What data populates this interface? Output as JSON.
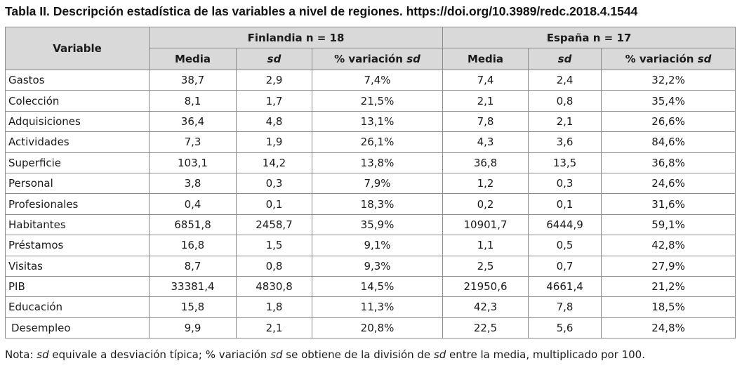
{
  "caption": "Tabla II. Descripción estadística de las variables a nivel de regiones. https://doi.org/10.3989/redc.2018.4.1544",
  "table": {
    "variable_header": "Variable",
    "groups": [
      {
        "label": "Finlandia n = 18"
      },
      {
        "label": "España n = 17"
      }
    ],
    "subheaders": {
      "media": "Media",
      "sd": "sd",
      "pct_prefix": "% variación",
      "pct_sd": "sd"
    },
    "rows": [
      {
        "variable": "Gastos",
        "fin": [
          "38,7",
          "2,9",
          "7,4%"
        ],
        "esp": [
          "7,4",
          "2,4",
          "32,2%"
        ]
      },
      {
        "variable": "Colección",
        "fin": [
          "8,1",
          "1,7",
          "21,5%"
        ],
        "esp": [
          "2,1",
          "0,8",
          "35,4%"
        ]
      },
      {
        "variable": "Adquisiciones",
        "fin": [
          "36,4",
          "4,8",
          "13,1%"
        ],
        "esp": [
          "7,8",
          "2,1",
          "26,6%"
        ]
      },
      {
        "variable": "Actividades",
        "fin": [
          "7,3",
          "1,9",
          "26,1%"
        ],
        "esp": [
          "4,3",
          "3,6",
          "84,6%"
        ]
      },
      {
        "variable": "Superficie",
        "fin": [
          "103,1",
          "14,2",
          "13,8%"
        ],
        "esp": [
          "36,8",
          "13,5",
          "36,8%"
        ]
      },
      {
        "variable": "Personal",
        "fin": [
          "3,8",
          "0,3",
          "7,9%"
        ],
        "esp": [
          "1,2",
          "0,3",
          "24,6%"
        ]
      },
      {
        "variable": "Profesionales",
        "fin": [
          "0,4",
          "0,1",
          "18,3%"
        ],
        "esp": [
          "0,2",
          "0,1",
          "31,6%"
        ]
      },
      {
        "variable": "Habitantes",
        "fin": [
          "6851,8",
          "2458,7",
          "35,9%"
        ],
        "esp": [
          "10901,7",
          "6444,9",
          "59,1%"
        ]
      },
      {
        "variable": "Préstamos",
        "fin": [
          "16,8",
          "1,5",
          "9,1%"
        ],
        "esp": [
          "1,1",
          "0,5",
          "42,8%"
        ]
      },
      {
        "variable": "Visitas",
        "fin": [
          "8,7",
          "0,8",
          "9,3%"
        ],
        "esp": [
          "2,5",
          "0,7",
          "27,9%"
        ]
      },
      {
        "variable": "PIB",
        "fin": [
          "33381,4",
          "4830,8",
          "14,5%"
        ],
        "esp": [
          "21950,6",
          "4661,4",
          "21,2%"
        ]
      },
      {
        "variable": "Educación",
        "fin": [
          "15,8",
          "1,8",
          "11,3%"
        ],
        "esp": [
          "42,3",
          "7,8",
          "18,5%"
        ]
      },
      {
        "variable": "Desempleo",
        "fin": [
          "9,9",
          "2,1",
          "20,8%"
        ],
        "esp": [
          "22,5",
          "5,6",
          "24,8%"
        ]
      }
    ]
  },
  "note": {
    "prefix": "Nota: ",
    "sd1": "sd",
    "mid1": " equivale a desviación típica; % variación ",
    "sd2": "sd",
    "mid2": " se obtiene de la división de ",
    "sd3": "sd",
    "suffix": " entre la media, multiplicado por 100."
  }
}
